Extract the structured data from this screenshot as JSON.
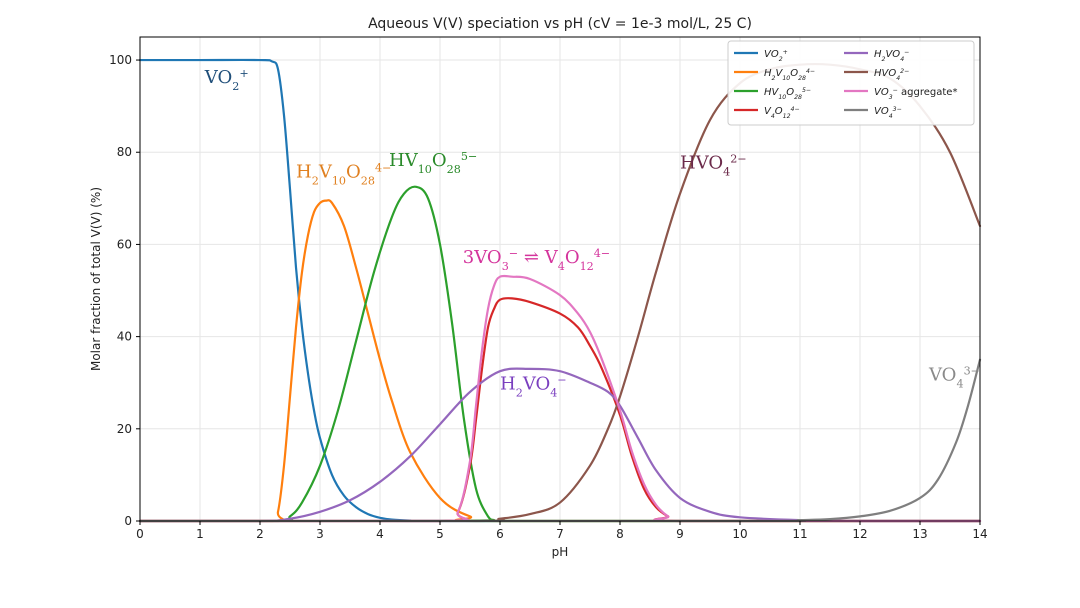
{
  "chart_data": {
    "type": "line",
    "title": "Aqueous V(V) speciation vs pH (cV = 1e-3 mol/L, 25 C)",
    "xlabel": "pH",
    "ylabel": "Molar fraction of total V(V) (%)",
    "xlim": [
      0,
      14
    ],
    "ylim": [
      0,
      105
    ],
    "xticks": [
      0,
      1,
      2,
      3,
      4,
      5,
      6,
      7,
      8,
      9,
      10,
      11,
      12,
      13,
      14
    ],
    "yticks": [
      0,
      20,
      40,
      60,
      80,
      100
    ],
    "grid": true,
    "legend_position": "top-right",
    "legend_columns": 2,
    "series": [
      {
        "name": "VO2+",
        "legend_main": "VO",
        "legend_sub": "2",
        "legend_sup": "+",
        "color": "#1f77b4",
        "x": [
          0,
          1,
          2,
          2.2,
          2.3,
          2.4,
          2.5,
          2.6,
          2.7,
          2.8,
          2.9,
          3.0,
          3.2,
          3.4,
          3.6,
          3.8,
          4.0,
          4.2,
          4.5,
          5.0,
          14
        ],
        "y": [
          100,
          100,
          100,
          99.7,
          98,
          88,
          72,
          55,
          42,
          32,
          24,
          18,
          10,
          5.5,
          3,
          1.5,
          0.7,
          0.3,
          0.1,
          0,
          0
        ]
      },
      {
        "name": "H2V10O28 4-",
        "legend_main": "H",
        "legend_sub": "2",
        "legend_main2": "V",
        "legend_sub2": "10",
        "legend_main3": "O",
        "legend_sub3": "28",
        "legend_sup": "4−",
        "color": "#ff7f0e",
        "x": [
          0,
          2.2,
          2.3,
          2.4,
          2.5,
          2.6,
          2.7,
          2.8,
          2.9,
          3.0,
          3.1,
          3.2,
          3.4,
          3.6,
          3.8,
          4.0,
          4.2,
          4.5,
          5.0,
          5.5,
          6.0,
          14
        ],
        "y": [
          0,
          0,
          2,
          12,
          27,
          42,
          54,
          62,
          67,
          69,
          69.5,
          69,
          64,
          55,
          45,
          35,
          26,
          15,
          5,
          1,
          0,
          0
        ]
      },
      {
        "name": "HV10O28 5-",
        "legend_main": "HV",
        "legend_sub": "10",
        "legend_main2": "O",
        "legend_sub2": "28",
        "legend_sup": "5−",
        "color": "#2ca02c",
        "x": [
          0,
          2.3,
          2.5,
          2.7,
          3.0,
          3.3,
          3.6,
          3.9,
          4.2,
          4.4,
          4.6,
          4.8,
          5.0,
          5.2,
          5.4,
          5.6,
          5.8,
          5.9,
          6.0,
          14
        ],
        "y": [
          0,
          0,
          1,
          4,
          12,
          24,
          39,
          54,
          66,
          71,
          72.5,
          70,
          60,
          43,
          22,
          7,
          1,
          0.2,
          0,
          0
        ]
      },
      {
        "name": "V4O12 4-",
        "legend_main": "V",
        "legend_sub": "4",
        "legend_main2": "O",
        "legend_sub2": "12",
        "legend_sup": "4−",
        "color": "#d62728",
        "x": [
          0,
          5.0,
          5.3,
          5.5,
          5.6,
          5.7,
          5.8,
          5.9,
          6.0,
          6.2,
          6.5,
          7.0,
          7.3,
          7.5,
          7.7,
          8.0,
          8.2,
          8.4,
          8.6,
          8.8,
          9.0,
          14
        ],
        "y": [
          0,
          0,
          2,
          12,
          22,
          33,
          42,
          46,
          48,
          48.3,
          47.5,
          45,
          42,
          38,
          33,
          23,
          14,
          7,
          3,
          1,
          0,
          0
        ]
      },
      {
        "name": "H2VO4-",
        "legend_main": "H",
        "legend_sub": "2",
        "legend_main2": "VO",
        "legend_sub2": "4",
        "legend_sup": "−",
        "color": "#9467bd",
        "x": [
          0,
          2,
          2.5,
          3.0,
          3.5,
          4.0,
          4.5,
          5.0,
          5.5,
          6.0,
          6.5,
          7.0,
          7.5,
          7.8,
          8.0,
          8.3,
          8.6,
          9.0,
          9.5,
          10,
          11,
          12,
          14
        ],
        "y": [
          0,
          0,
          0.5,
          2,
          4.5,
          8.5,
          14,
          21,
          28,
          32.5,
          33,
          32.5,
          30,
          28,
          25,
          18,
          11,
          5,
          2,
          0.8,
          0.2,
          0,
          0
        ]
      },
      {
        "name": "HVO4 2-",
        "legend_main": "HVO",
        "legend_sub": "4",
        "legend_sup": "2−",
        "color": "#8c564b",
        "x": [
          0,
          5.5,
          6.0,
          6.5,
          7.0,
          7.5,
          7.8,
          8.0,
          8.3,
          8.6,
          9.0,
          9.5,
          10,
          10.5,
          11,
          11.5,
          12,
          12.5,
          13.0,
          13.5,
          14.0
        ],
        "y": [
          0,
          0,
          0.5,
          1.5,
          4,
          12,
          20,
          27,
          40,
          54,
          71,
          87,
          95,
          98,
          99,
          99,
          98,
          96,
          90,
          80,
          64
        ]
      },
      {
        "name": "VO3- aggregate*",
        "legend_main": "VO",
        "legend_sub": "3",
        "legend_sup": "−",
        "legend_suffix": "  aggregate*",
        "color": "#e377c2",
        "x": [
          0,
          5.0,
          5.3,
          5.5,
          5.6,
          5.7,
          5.8,
          5.9,
          6.0,
          6.2,
          6.5,
          7.0,
          7.3,
          7.5,
          7.7,
          8.0,
          8.2,
          8.4,
          8.6,
          8.8,
          9.0,
          14
        ],
        "y": [
          0,
          0,
          2,
          13,
          25,
          37,
          46,
          51,
          53,
          53,
          52.5,
          49,
          45,
          41,
          35,
          24,
          15,
          8,
          3.5,
          1,
          0,
          0
        ]
      },
      {
        "name": "VO4 3-",
        "legend_main": "VO",
        "legend_sub": "4",
        "legend_sup": "3−",
        "color": "#7f7f7f",
        "x": [
          0,
          10,
          11,
          11.5,
          12.0,
          12.5,
          13.0,
          13.3,
          13.6,
          13.8,
          14.0
        ],
        "y": [
          0,
          0,
          0.2,
          0.4,
          1,
          2.2,
          5,
          9,
          17,
          25,
          35
        ]
      }
    ],
    "annotations": [
      {
        "main": "VO",
        "sub": "2",
        "sup": "+",
        "x": 1.08,
        "y": 95,
        "color": "#1f4e79"
      },
      {
        "main": "H",
        "sub": "2",
        "main2": "V",
        "sub2": "10",
        "main3": "O",
        "sub3": "28",
        "sup": "4−",
        "x": 2.6,
        "y": 74.5,
        "color": "#e08020"
      },
      {
        "main": "HV",
        "sub": "10",
        "main2": "O",
        "sub2": "28",
        "sup": "5−",
        "x": 4.15,
        "y": 77,
        "color": "#2a8a2a"
      },
      {
        "main": "3VO",
        "sub": "3",
        "sup": "−",
        "arrow": " ⇌ ",
        "main2": "V",
        "sub2": "4",
        "main3": "O",
        "sub3": "12",
        "sup3": "4−",
        "x": 5.38,
        "y": 56,
        "color": "#d4349c"
      },
      {
        "main": "HVO",
        "sub": "4",
        "sup": "2−",
        "x": 9.0,
        "y": 76.5,
        "color": "#6b2a4a"
      },
      {
        "main": "H",
        "sub": "2",
        "main2": "VO",
        "sub2": "4",
        "sup": "−",
        "x": 6.0,
        "y": 28.5,
        "color": "#7a3fbf"
      },
      {
        "main": "VO",
        "sub": "4",
        "sup": "3−",
        "x": 13.15,
        "y": 30.5,
        "color": "#8a8a8a"
      }
    ]
  }
}
